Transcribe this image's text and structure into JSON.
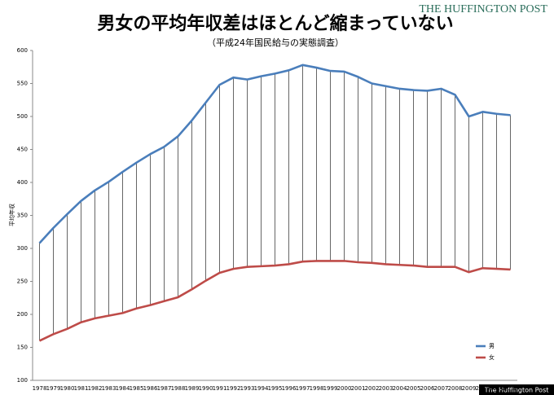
{
  "branding": {
    "logo": "THE HUFFINGTON POST",
    "footer": "The Huffington Post"
  },
  "chart_data": {
    "type": "line",
    "title": "男女の平均年収差はほとんど縮まっていない",
    "subtitle": "（平成24年国民給与の実態調査）",
    "y_label": "平均年収",
    "categories": [
      "1978",
      "1979",
      "1980",
      "1981",
      "1982",
      "1983",
      "1984",
      "1985",
      "1986",
      "1987",
      "1988",
      "1989",
      "1990",
      "1991",
      "1992",
      "1993",
      "1994",
      "1995",
      "1996",
      "1997",
      "1998",
      "1999",
      "2000",
      "2001",
      "2002",
      "2003",
      "2004",
      "2005",
      "2006",
      "2007",
      "2008",
      "2009",
      "2010",
      "2011",
      "2012"
    ],
    "series": [
      {
        "name": "男",
        "color": "#4a7ebb",
        "values": [
          308,
          331,
          352,
          372,
          388,
          401,
          416,
          430,
          443,
          454,
          470,
          494,
          521,
          548,
          559,
          556,
          561,
          565,
          570,
          578,
          574,
          569,
          568,
          560,
          550,
          546,
          542,
          540,
          539,
          542,
          533,
          500,
          507,
          504,
          502
        ]
      },
      {
        "name": "女",
        "color": "#be4b48",
        "values": [
          160,
          170,
          178,
          188,
          194,
          198,
          202,
          209,
          214,
          220,
          226,
          238,
          251,
          263,
          269,
          272,
          273,
          274,
          276,
          280,
          281,
          281,
          281,
          279,
          278,
          276,
          275,
          274,
          272,
          272,
          272,
          264,
          270,
          269,
          268
        ]
      }
    ],
    "ylim": [
      100,
      600
    ],
    "yticks": [
      100,
      150,
      200,
      250,
      300,
      350,
      400,
      450,
      500,
      550,
      600
    ],
    "grid": false,
    "drop_lines": true,
    "legend": "bottom-right"
  }
}
